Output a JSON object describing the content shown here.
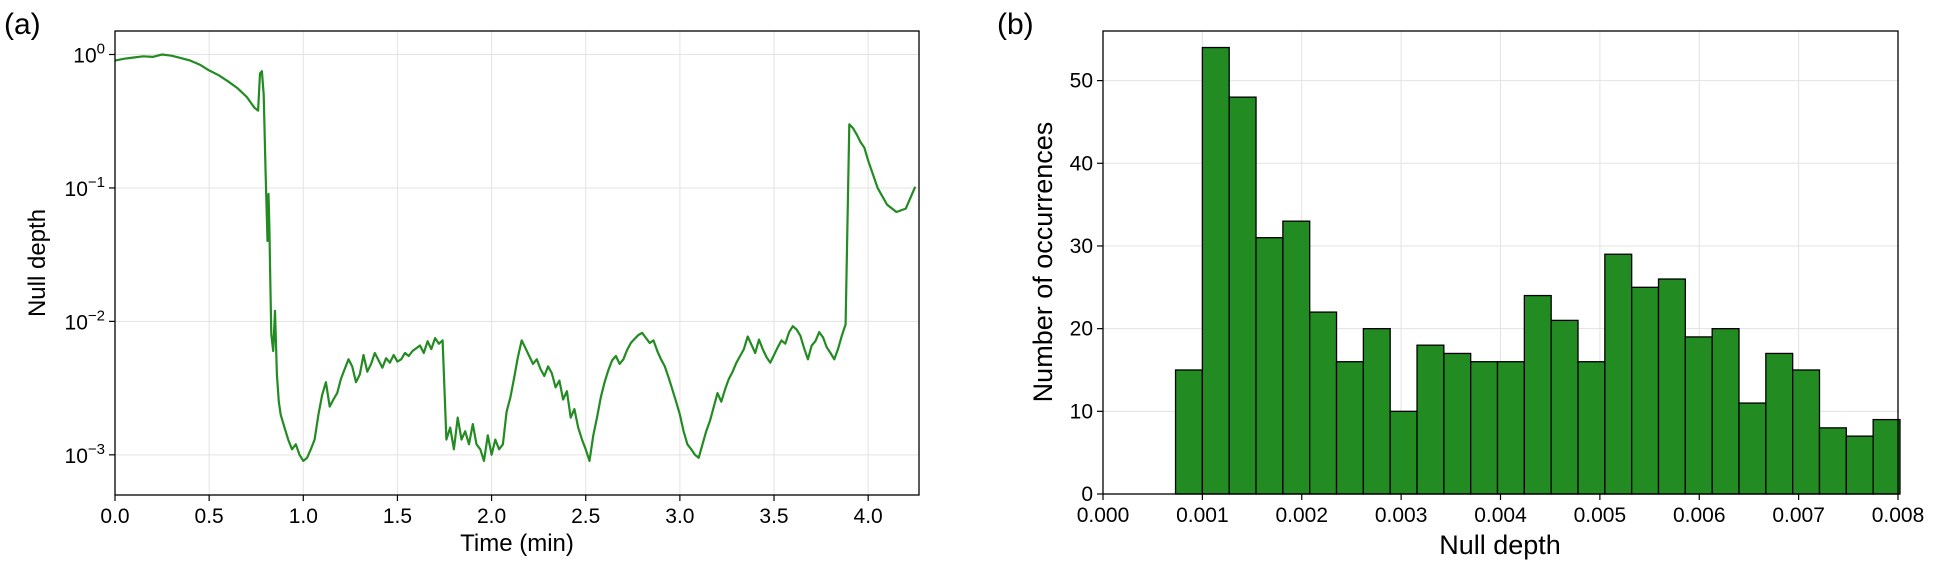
{
  "colors": {
    "series": "#228B22",
    "bar_fill": "#228B22",
    "bar_edge": "#000000",
    "grid": "#e3e3e3"
  },
  "chart_data": [
    {
      "panel_label": "(a)",
      "type": "line",
      "xlabel": "Time (min)",
      "ylabel": "Null depth",
      "xlim": [
        0.0,
        4.27
      ],
      "ylim": [
        0.0005,
        1.5
      ],
      "yscale": "log",
      "grid": true,
      "xticks": [
        0.0,
        0.5,
        1.0,
        1.5,
        2.0,
        2.5,
        3.0,
        3.5,
        4.0
      ],
      "xtick_labels": [
        "0.0",
        "0.5",
        "1.0",
        "1.5",
        "2.0",
        "2.5",
        "3.0",
        "3.5",
        "4.0"
      ],
      "yticks": [
        {
          "value": 0.001,
          "base": "10",
          "exp": "−3"
        },
        {
          "value": 0.01,
          "base": "10",
          "exp": "−2"
        },
        {
          "value": 0.1,
          "base": "10",
          "exp": "−1"
        },
        {
          "value": 1.0,
          "base": "10",
          "exp": "0"
        }
      ],
      "series": [
        {
          "x": [
            0.0,
            0.05,
            0.1,
            0.15,
            0.2,
            0.25,
            0.3,
            0.35,
            0.4,
            0.45,
            0.5,
            0.55,
            0.6,
            0.65,
            0.7,
            0.74,
            0.76,
            0.77,
            0.78,
            0.79,
            0.8,
            0.805,
            0.81,
            0.815,
            0.82,
            0.825,
            0.83,
            0.84,
            0.85,
            0.86,
            0.87,
            0.88,
            0.9,
            0.92,
            0.94,
            0.96,
            0.98,
            1.0,
            1.02,
            1.04,
            1.06,
            1.08,
            1.1,
            1.12,
            1.14,
            1.16,
            1.18,
            1.2,
            1.22,
            1.24,
            1.26,
            1.28,
            1.3,
            1.32,
            1.34,
            1.36,
            1.38,
            1.4,
            1.42,
            1.44,
            1.46,
            1.48,
            1.5,
            1.52,
            1.54,
            1.56,
            1.58,
            1.6,
            1.62,
            1.64,
            1.66,
            1.68,
            1.7,
            1.72,
            1.74,
            1.76,
            1.78,
            1.8,
            1.82,
            1.84,
            1.86,
            1.88,
            1.9,
            1.92,
            1.94,
            1.96,
            1.98,
            2.0,
            2.02,
            2.04,
            2.06,
            2.08,
            2.1,
            2.12,
            2.14,
            2.16,
            2.18,
            2.2,
            2.22,
            2.24,
            2.26,
            2.28,
            2.3,
            2.32,
            2.34,
            2.36,
            2.38,
            2.4,
            2.42,
            2.44,
            2.46,
            2.48,
            2.5,
            2.52,
            2.54,
            2.56,
            2.58,
            2.6,
            2.62,
            2.64,
            2.66,
            2.68,
            2.7,
            2.72,
            2.74,
            2.76,
            2.78,
            2.8,
            2.82,
            2.84,
            2.86,
            2.88,
            2.9,
            2.92,
            2.94,
            2.96,
            2.98,
            3.0,
            3.02,
            3.04,
            3.06,
            3.08,
            3.1,
            3.12,
            3.14,
            3.16,
            3.18,
            3.2,
            3.22,
            3.24,
            3.26,
            3.28,
            3.3,
            3.32,
            3.34,
            3.36,
            3.38,
            3.4,
            3.42,
            3.44,
            3.46,
            3.48,
            3.5,
            3.52,
            3.54,
            3.56,
            3.58,
            3.6,
            3.62,
            3.64,
            3.66,
            3.68,
            3.7,
            3.72,
            3.74,
            3.76,
            3.78,
            3.8,
            3.82,
            3.84,
            3.86,
            3.88,
            3.9,
            3.92,
            3.94,
            3.96,
            3.98,
            4.0,
            4.05,
            4.1,
            4.15,
            4.2,
            4.25
          ],
          "y": [
            0.9,
            0.93,
            0.95,
            0.97,
            0.96,
            1.0,
            0.98,
            0.94,
            0.9,
            0.84,
            0.76,
            0.7,
            0.63,
            0.56,
            0.48,
            0.4,
            0.38,
            0.72,
            0.75,
            0.5,
            0.13,
            0.07,
            0.04,
            0.09,
            0.05,
            0.02,
            0.008,
            0.006,
            0.012,
            0.004,
            0.0025,
            0.002,
            0.0016,
            0.0013,
            0.0011,
            0.0012,
            0.001,
            0.0009,
            0.00095,
            0.0011,
            0.0013,
            0.002,
            0.0028,
            0.0035,
            0.0023,
            0.0026,
            0.0029,
            0.0037,
            0.0044,
            0.0052,
            0.0046,
            0.0035,
            0.004,
            0.0056,
            0.0042,
            0.0048,
            0.0058,
            0.0051,
            0.0045,
            0.0053,
            0.0049,
            0.0056,
            0.005,
            0.0052,
            0.0058,
            0.0055,
            0.006,
            0.0063,
            0.0066,
            0.0058,
            0.0071,
            0.0062,
            0.0075,
            0.0068,
            0.0072,
            0.0013,
            0.0016,
            0.0011,
            0.0019,
            0.0013,
            0.0015,
            0.0012,
            0.0017,
            0.0012,
            0.0011,
            0.0009,
            0.0014,
            0.001,
            0.0013,
            0.0011,
            0.0012,
            0.0021,
            0.0027,
            0.0038,
            0.0054,
            0.0072,
            0.0063,
            0.0055,
            0.0048,
            0.0052,
            0.0044,
            0.0039,
            0.0046,
            0.0041,
            0.0032,
            0.0036,
            0.0026,
            0.003,
            0.0019,
            0.0022,
            0.0016,
            0.0013,
            0.0011,
            0.0009,
            0.0014,
            0.0019,
            0.0027,
            0.0035,
            0.0043,
            0.0051,
            0.0055,
            0.0048,
            0.0052,
            0.0061,
            0.0069,
            0.0074,
            0.0079,
            0.0082,
            0.0075,
            0.0069,
            0.0072,
            0.006,
            0.0052,
            0.0046,
            0.0038,
            0.0031,
            0.0025,
            0.002,
            0.0015,
            0.0012,
            0.0011,
            0.001,
            0.00095,
            0.0012,
            0.0015,
            0.0018,
            0.0023,
            0.0029,
            0.0025,
            0.0031,
            0.0037,
            0.0042,
            0.0049,
            0.0055,
            0.0062,
            0.0077,
            0.0067,
            0.0058,
            0.0073,
            0.0062,
            0.0054,
            0.0049,
            0.0056,
            0.0064,
            0.0072,
            0.0068,
            0.0083,
            0.0092,
            0.0087,
            0.0078,
            0.0063,
            0.0052,
            0.0066,
            0.0071,
            0.0083,
            0.0076,
            0.0064,
            0.0058,
            0.0052,
            0.0062,
            0.0078,
            0.0095,
            0.3,
            0.28,
            0.25,
            0.22,
            0.2,
            0.16,
            0.1,
            0.075,
            0.066,
            0.07,
            0.102
          ]
        }
      ]
    },
    {
      "panel_label": "(b)",
      "type": "bar",
      "subtype": "histogram",
      "xlabel": "Null depth",
      "ylabel": "Number of occurrences",
      "xlim": [
        0.0,
        0.008
      ],
      "ylim": [
        0,
        56
      ],
      "grid": true,
      "xticks": [
        0.0,
        0.001,
        0.002,
        0.003,
        0.004,
        0.005,
        0.006,
        0.007,
        0.008
      ],
      "xtick_labels": [
        "0.000",
        "0.001",
        "0.002",
        "0.003",
        "0.004",
        "0.005",
        "0.006",
        "0.007",
        "0.008"
      ],
      "yticks": [
        0,
        10,
        20,
        30,
        40,
        50
      ],
      "ytick_labels": [
        "0",
        "10",
        "20",
        "30",
        "40",
        "50"
      ],
      "bin_edges": [
        0.00073,
        0.001,
        0.00127,
        0.00154,
        0.00181,
        0.00208,
        0.00235,
        0.00262,
        0.00289,
        0.00316,
        0.00343,
        0.0037,
        0.00397,
        0.00424,
        0.00451,
        0.00478,
        0.00505,
        0.00532,
        0.00559,
        0.00586,
        0.00613,
        0.0064,
        0.00667,
        0.00694,
        0.00721,
        0.00748,
        0.00775,
        0.00802
      ],
      "values": [
        15,
        54,
        48,
        31,
        33,
        22,
        16,
        20,
        10,
        18,
        17,
        16,
        16,
        24,
        21,
        16,
        29,
        25,
        26,
        19,
        20,
        11,
        17,
        15,
        8,
        7,
        9
      ]
    }
  ]
}
